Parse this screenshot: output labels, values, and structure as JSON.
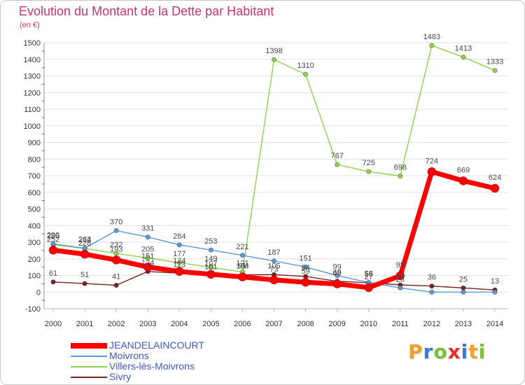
{
  "chart_data": {
    "type": "line",
    "title": "Evolution du Montant de la Dette par Habitant",
    "subtitle": "(en €)",
    "x": [
      "2000",
      "2001",
      "2002",
      "2003",
      "2004",
      "2005",
      "2006",
      "2007",
      "2008",
      "2009",
      "2010",
      "2011",
      "2012",
      "2013",
      "2014"
    ],
    "ylim": [
      -100,
      1500
    ],
    "y_ticks": [
      -100,
      0,
      100,
      200,
      300,
      400,
      500,
      600,
      700,
      800,
      900,
      1000,
      1100,
      1200,
      1300,
      1400,
      1500
    ],
    "grid": true,
    "legend_position": "bottom-left",
    "series": [
      {
        "name": "JEANDELAINCOURT",
        "color": "#ff0000",
        "values": [
          252,
          228,
          193,
          151,
          124,
          107,
          91,
          73,
          59,
          49,
          27,
          98,
          724,
          669,
          624
        ]
      },
      {
        "name": "Moivrons",
        "color": "#5b9bd5",
        "values": [
          290,
          264,
          370,
          331,
          284,
          253,
          221,
          187,
          151,
          99,
          58,
          25,
          0,
          0,
          0
        ]
      },
      {
        "name": "Villers-lès-Moivrons",
        "color": "#8fd14f",
        "values": [
          285,
          262,
          232,
          205,
          177,
          149,
          121,
          1398,
          1310,
          767,
          725,
          698,
          1483,
          1413,
          1333
        ]
      },
      {
        "name": "Sivry",
        "color": "#7a2424",
        "values": [
          61,
          51,
          41,
          124,
          113,
          101,
          104,
          105,
          94,
          65,
          56,
          43,
          36,
          25,
          13
        ]
      }
    ]
  },
  "logo": "Proxiti",
  "logo_colors": [
    "#f0a030",
    "#3a7bd5",
    "#7bbf3a",
    "#e03030",
    "#3a7bd5",
    "#f0a030",
    "#7bbf3a"
  ]
}
